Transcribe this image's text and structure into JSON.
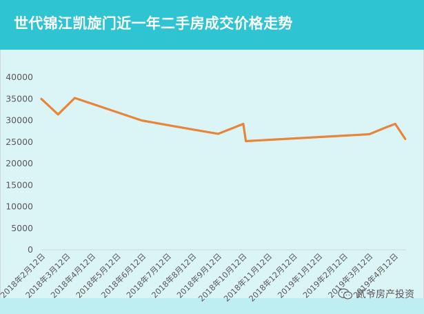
{
  "title": "世代锦江凯旋门近一年二手房成交价格走势",
  "watermark": "贰爷房产投资",
  "colors": {
    "header": "#2ec4d2",
    "line": "#e8853a",
    "background": "#dbf5f7"
  },
  "chart_data": {
    "type": "line",
    "title": "世代锦江凯旋门近一年二手房成交价格走势",
    "ylim": [
      0,
      40000
    ],
    "yticks": [
      0,
      5000,
      10000,
      15000,
      20000,
      25000,
      30000,
      35000,
      40000
    ],
    "xlabels": [
      "2018年2月12日",
      "2018年3月12日",
      "2018年4月12日",
      "2018年5月12日",
      "2018年6月12日",
      "2018年7月12日",
      "2018年8月12日",
      "2018年9月12日",
      "2018年10月12日",
      "2018年11月12日",
      "2018年12月12日",
      "2019年1月12日",
      "2019年2月12日",
      "2019年3月12日",
      "2019年4月12日"
    ],
    "xrange": [
      "2018-02-12",
      "2019-04-25"
    ],
    "grid": false,
    "series": [
      {
        "color": "#e8853a",
        "points": [
          [
            "2018-02-12",
            35000
          ],
          [
            "2018-03-04",
            31400
          ],
          [
            "2018-03-24",
            35200
          ],
          [
            "2018-06-12",
            30000
          ],
          [
            "2018-08-12",
            27900
          ],
          [
            "2018-09-12",
            26900
          ],
          [
            "2018-10-12",
            29200
          ],
          [
            "2018-10-15",
            25200
          ],
          [
            "2019-03-12",
            26800
          ],
          [
            "2019-04-01",
            28400
          ],
          [
            "2019-04-12",
            29200
          ],
          [
            "2019-04-24",
            25700
          ]
        ]
      }
    ]
  }
}
